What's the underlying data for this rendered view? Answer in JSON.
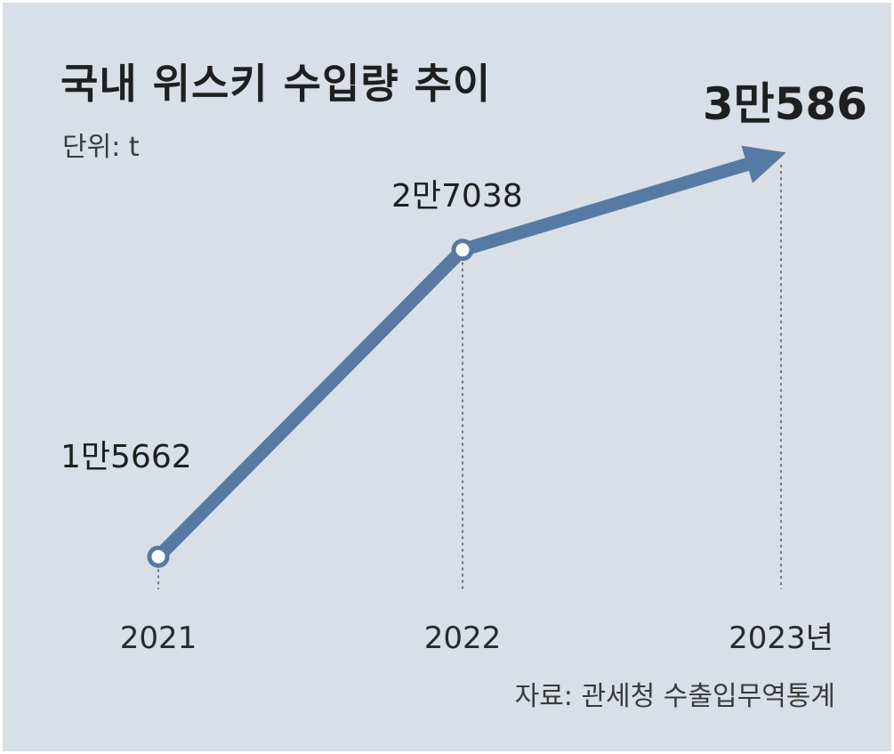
{
  "title": "국내 위스키 수입량 추이",
  "unit_label": "단위: t",
  "source": "자료: 관세청 수출입무역통계",
  "colors": {
    "background": "#d8dfe6",
    "line": "#577aa4",
    "text": "#1f1f1f"
  },
  "chart_data": {
    "type": "line",
    "title": "국내 위스키 수입량 추이",
    "x": [
      "2021",
      "2022",
      "2023년"
    ],
    "series": [
      {
        "values": [
          15662,
          27038,
          30586
        ]
      }
    ],
    "data_labels": [
      "1만5662",
      "2만7038",
      "3만586"
    ],
    "ylabel": "",
    "xlabel": "",
    "ylim": [
      13000,
      33000
    ],
    "grid": false,
    "last_point_arrow": true
  }
}
